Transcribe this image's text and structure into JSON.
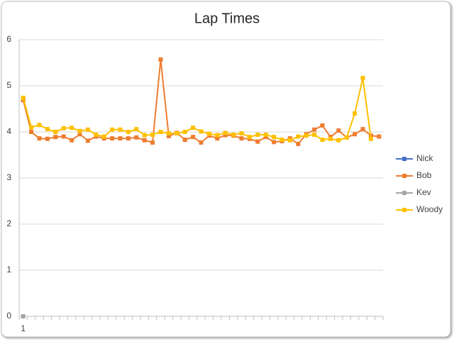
{
  "chart_data": {
    "type": "line",
    "title": "Lap Times",
    "categories": [
      "1",
      null,
      null,
      null,
      null,
      null,
      null,
      null,
      null,
      null,
      null,
      null,
      null,
      null,
      null,
      null,
      null,
      null,
      null,
      null,
      null,
      null,
      null,
      null,
      null,
      null,
      null,
      null,
      null,
      null,
      null,
      null,
      null,
      null,
      null,
      null,
      null,
      null,
      null,
      null,
      null,
      null,
      null,
      null,
      null
    ],
    "series": [
      {
        "name": "Nick",
        "color": "#4472c4",
        "values": [
          4.7,
          null,
          null,
          null,
          null,
          null,
          null,
          null,
          null,
          null,
          null,
          null,
          null,
          null,
          null,
          null,
          null,
          null,
          null,
          null,
          null,
          null,
          null,
          null,
          null,
          null,
          null,
          null,
          null,
          null,
          null,
          null,
          null,
          null,
          null,
          null,
          null,
          null,
          null,
          null,
          null,
          null,
          null,
          null,
          null
        ]
      },
      {
        "name": "Bob",
        "color": "#ed7d31",
        "values": [
          4.69,
          4.0,
          3.86,
          3.85,
          3.89,
          3.9,
          3.82,
          3.95,
          3.81,
          3.9,
          3.86,
          3.86,
          3.86,
          3.86,
          3.88,
          3.82,
          3.77,
          5.57,
          3.91,
          3.98,
          3.83,
          3.89,
          3.77,
          3.92,
          3.86,
          3.93,
          3.92,
          3.86,
          3.85,
          3.79,
          3.89,
          3.78,
          3.8,
          3.86,
          3.74,
          3.95,
          4.05,
          4.14,
          3.89,
          4.03,
          3.88,
          3.95,
          4.06,
          3.92,
          3.9
        ]
      },
      {
        "name": "Kev",
        "color": "#a5a5a5",
        "values": [
          0,
          null,
          null,
          null,
          null,
          null,
          null,
          null,
          null,
          null,
          null,
          null,
          null,
          null,
          null,
          null,
          null,
          null,
          null,
          null,
          null,
          null,
          null,
          null,
          null,
          null,
          null,
          null,
          null,
          null,
          null,
          null,
          null,
          null,
          null,
          null,
          null,
          null,
          null,
          null,
          null,
          null,
          null,
          null,
          null
        ]
      },
      {
        "name": "Woody",
        "color": "#ffc000",
        "values": [
          4.74,
          4.1,
          4.15,
          4.06,
          4.0,
          4.08,
          4.09,
          4.02,
          4.05,
          3.94,
          3.9,
          4.05,
          4.05,
          4.0,
          4.06,
          3.93,
          3.94,
          4.0,
          3.97,
          3.97,
          4.0,
          4.09,
          4.01,
          3.96,
          3.93,
          3.98,
          3.94,
          3.97,
          3.89,
          3.94,
          3.94,
          3.89,
          3.83,
          3.82,
          3.9,
          3.92,
          3.94,
          3.83,
          3.85,
          3.82,
          3.88,
          4.4,
          5.17,
          3.85,
          null
        ]
      }
    ],
    "ylim": [
      0,
      6
    ],
    "yticks": [
      0,
      1,
      2,
      3,
      4,
      5,
      6
    ],
    "grid": true,
    "legend": "right"
  }
}
